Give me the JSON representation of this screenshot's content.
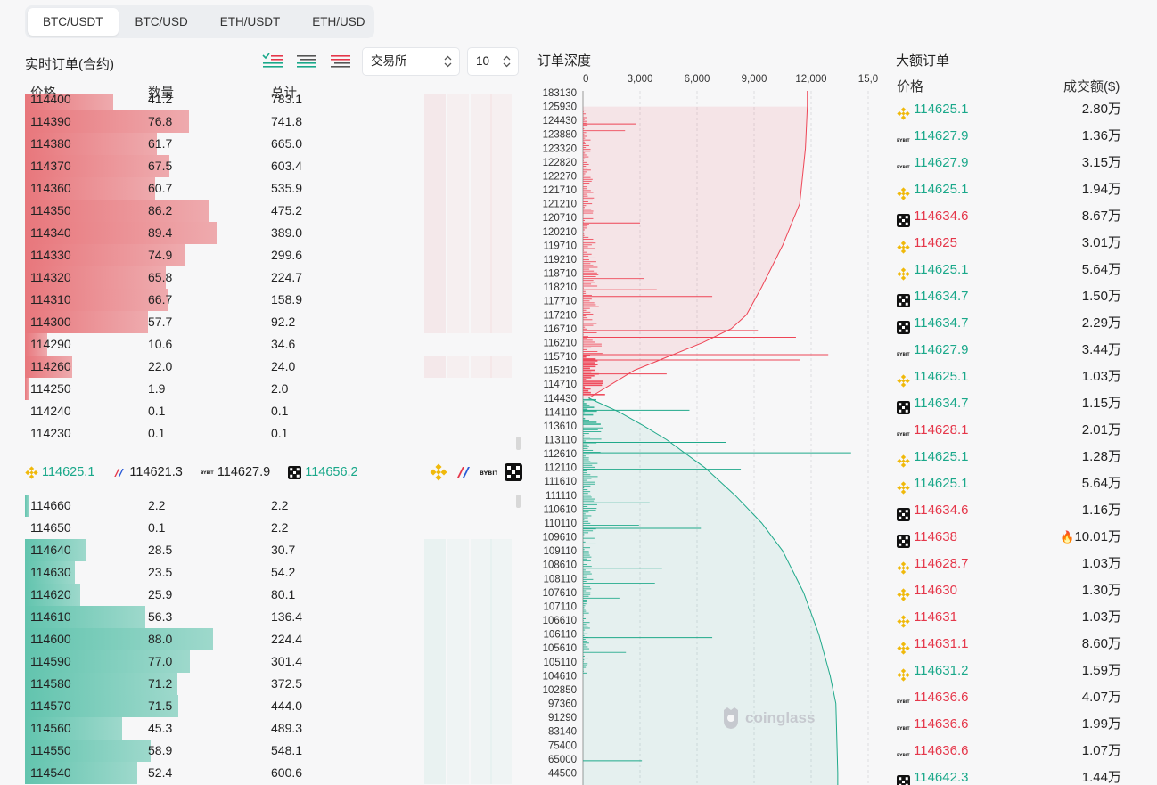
{
  "tabs": [
    {
      "label": "BTC/USDT",
      "active": true
    },
    {
      "label": "BTC/USD",
      "active": false
    },
    {
      "label": "ETH/USDT",
      "active": false
    },
    {
      "label": "ETH/USD",
      "active": false
    }
  ],
  "orderbook": {
    "title": "实时订单(合约)",
    "exchange_select": "交易所",
    "depth_select": "10",
    "columns": {
      "price": "价格",
      "qty": "数量",
      "total": "总计"
    },
    "ask_color": "#e8777c",
    "bid_color": "#62c4ae",
    "asks": [
      {
        "price": "114400",
        "qty": "41.2",
        "total": "783.1"
      },
      {
        "price": "114390",
        "qty": "76.8",
        "total": "741.8"
      },
      {
        "price": "114380",
        "qty": "61.7",
        "total": "665.0"
      },
      {
        "price": "114370",
        "qty": "67.5",
        "total": "603.4"
      },
      {
        "price": "114360",
        "qty": "60.7",
        "total": "535.9"
      },
      {
        "price": "114350",
        "qty": "86.2",
        "total": "475.2"
      },
      {
        "price": "114340",
        "qty": "89.4",
        "total": "389.0"
      },
      {
        "price": "114330",
        "qty": "74.9",
        "total": "299.6"
      },
      {
        "price": "114320",
        "qty": "65.8",
        "total": "224.7"
      },
      {
        "price": "114310",
        "qty": "66.7",
        "total": "158.9"
      },
      {
        "price": "114300",
        "qty": "57.7",
        "total": "92.2"
      },
      {
        "price": "114290",
        "qty": "10.6",
        "total": "34.6"
      },
      {
        "price": "114260",
        "qty": "22.0",
        "total": "24.0"
      },
      {
        "price": "114250",
        "qty": "1.9",
        "total": "2.0"
      },
      {
        "price": "114240",
        "qty": "0.1",
        "total": "0.1"
      },
      {
        "price": "114230",
        "qty": "0.1",
        "total": "0.1"
      }
    ],
    "bids": [
      {
        "price": "114660",
        "qty": "2.2",
        "total": "2.2"
      },
      {
        "price": "114650",
        "qty": "0.1",
        "total": "2.2"
      },
      {
        "price": "114640",
        "qty": "28.5",
        "total": "30.7"
      },
      {
        "price": "114630",
        "qty": "23.5",
        "total": "54.2"
      },
      {
        "price": "114620",
        "qty": "25.9",
        "total": "80.1"
      },
      {
        "price": "114610",
        "qty": "56.3",
        "total": "136.4"
      },
      {
        "price": "114600",
        "qty": "88.0",
        "total": "224.4"
      },
      {
        "price": "114590",
        "qty": "77.0",
        "total": "301.4"
      },
      {
        "price": "114580",
        "qty": "71.2",
        "total": "372.5"
      },
      {
        "price": "114570",
        "qty": "71.5",
        "total": "444.0"
      },
      {
        "price": "114560",
        "qty": "45.3",
        "total": "489.3"
      },
      {
        "price": "114550",
        "qty": "58.9",
        "total": "548.1"
      },
      {
        "price": "114540",
        "qty": "52.4",
        "total": "600.6"
      }
    ],
    "exchange_prices": [
      {
        "icon": "binance-icon",
        "price": "114625.1",
        "color": "green"
      },
      {
        "icon": "bitmex-icon",
        "price": "114621.3",
        "color": "dark"
      },
      {
        "icon": "bybit-icon",
        "price": "114627.9",
        "color": "dark"
      },
      {
        "icon": "okx-icon",
        "price": "114656.2",
        "color": "green"
      }
    ]
  },
  "depth": {
    "title": "订单深度",
    "watermark": "coinglass"
  },
  "chart_data": {
    "type": "area",
    "x_ticks": [
      "0",
      "3,000",
      "6,000",
      "9,000",
      "12,000",
      "15,0"
    ],
    "xlim": [
      0,
      15000
    ],
    "y_ticks": [
      "183130",
      "125930",
      "124430",
      "123880",
      "123320",
      "122820",
      "122270",
      "121710",
      "121210",
      "120710",
      "120210",
      "119710",
      "119210",
      "118710",
      "118210",
      "117710",
      "117210",
      "116710",
      "116210",
      "115710",
      "115210",
      "114710",
      "114430",
      "114110",
      "113610",
      "113110",
      "112610",
      "112110",
      "111610",
      "111110",
      "110610",
      "110110",
      "109610",
      "109110",
      "108610",
      "108110",
      "107610",
      "107110",
      "106610",
      "106110",
      "105610",
      "105110",
      "104610",
      "102850",
      "97360",
      "91290",
      "83140",
      "75400",
      "65000",
      "44500"
    ],
    "asks_cumulative": [
      {
        "price": 125930,
        "qty": 11800
      },
      {
        "price": 123320,
        "qty": 11700
      },
      {
        "price": 121210,
        "qty": 11400
      },
      {
        "price": 119710,
        "qty": 10500
      },
      {
        "price": 118210,
        "qty": 9400
      },
      {
        "price": 117210,
        "qty": 8600
      },
      {
        "price": 116710,
        "qty": 7800
      },
      {
        "price": 116210,
        "qty": 6300
      },
      {
        "price": 115710,
        "qty": 4500
      },
      {
        "price": 115210,
        "qty": 2700
      },
      {
        "price": 114710,
        "qty": 1500
      },
      {
        "price": 114430,
        "qty": 300
      }
    ],
    "bids_cumulative": [
      {
        "price": 114430,
        "qty": 300
      },
      {
        "price": 114110,
        "qty": 1900
      },
      {
        "price": 113610,
        "qty": 3200
      },
      {
        "price": 113110,
        "qty": 4400
      },
      {
        "price": 112110,
        "qty": 6400
      },
      {
        "price": 111110,
        "qty": 8000
      },
      {
        "price": 110110,
        "qty": 9400
      },
      {
        "price": 109110,
        "qty": 10500
      },
      {
        "price": 107610,
        "qty": 11600
      },
      {
        "price": 106110,
        "qty": 12400
      },
      {
        "price": 104610,
        "qty": 13000
      },
      {
        "price": 97360,
        "qty": 13300
      },
      {
        "price": 44500,
        "qty": 13400
      }
    ],
    "ask_color": "#ee4556",
    "bid_color": "#1fa98a"
  },
  "large_orders": {
    "title": "大额订单",
    "col_price": "价格",
    "col_amount": "成交额($)",
    "rows": [
      {
        "icon": "binance-icon",
        "price": "114625.1",
        "side": "green",
        "amount": "2.80万"
      },
      {
        "icon": "bybit-icon",
        "price": "114627.9",
        "side": "green",
        "amount": "1.36万"
      },
      {
        "icon": "bybit-icon",
        "price": "114627.9",
        "side": "green",
        "amount": "3.15万"
      },
      {
        "icon": "binance-icon",
        "price": "114625.1",
        "side": "green",
        "amount": "1.94万"
      },
      {
        "icon": "okx-icon",
        "price": "114634.6",
        "side": "red",
        "amount": "8.67万"
      },
      {
        "icon": "binance-icon",
        "price": "114625",
        "side": "red",
        "amount": "3.01万"
      },
      {
        "icon": "binance-icon",
        "price": "114625.1",
        "side": "green",
        "amount": "5.64万"
      },
      {
        "icon": "okx-icon",
        "price": "114634.7",
        "side": "green",
        "amount": "1.50万"
      },
      {
        "icon": "okx-icon",
        "price": "114634.7",
        "side": "green",
        "amount": "2.29万"
      },
      {
        "icon": "bybit-icon",
        "price": "114627.9",
        "side": "green",
        "amount": "3.44万"
      },
      {
        "icon": "binance-icon",
        "price": "114625.1",
        "side": "green",
        "amount": "1.03万"
      },
      {
        "icon": "okx-icon",
        "price": "114634.7",
        "side": "green",
        "amount": "1.15万"
      },
      {
        "icon": "bybit-icon",
        "price": "114628.1",
        "side": "red",
        "amount": "2.01万"
      },
      {
        "icon": "binance-icon",
        "price": "114625.1",
        "side": "green",
        "amount": "1.28万"
      },
      {
        "icon": "binance-icon",
        "price": "114625.1",
        "side": "green",
        "amount": "5.64万"
      },
      {
        "icon": "okx-icon",
        "price": "114634.6",
        "side": "red",
        "amount": "1.16万"
      },
      {
        "icon": "okx-icon",
        "price": "114638",
        "side": "red",
        "amount": "10.01万",
        "hot": true
      },
      {
        "icon": "binance-icon",
        "price": "114628.7",
        "side": "red",
        "amount": "1.03万"
      },
      {
        "icon": "binance-icon",
        "price": "114630",
        "side": "red",
        "amount": "1.30万"
      },
      {
        "icon": "binance-icon",
        "price": "114631",
        "side": "red",
        "amount": "1.03万"
      },
      {
        "icon": "binance-icon",
        "price": "114631.1",
        "side": "red",
        "amount": "8.60万"
      },
      {
        "icon": "binance-icon",
        "price": "114631.2",
        "side": "green",
        "amount": "1.59万"
      },
      {
        "icon": "bybit-icon",
        "price": "114636.6",
        "side": "red",
        "amount": "4.07万"
      },
      {
        "icon": "bybit-icon",
        "price": "114636.6",
        "side": "red",
        "amount": "1.99万"
      },
      {
        "icon": "bybit-icon",
        "price": "114636.6",
        "side": "red",
        "amount": "1.07万"
      },
      {
        "icon": "okx-icon",
        "price": "114642.3",
        "side": "green",
        "amount": "1.44万"
      }
    ]
  }
}
